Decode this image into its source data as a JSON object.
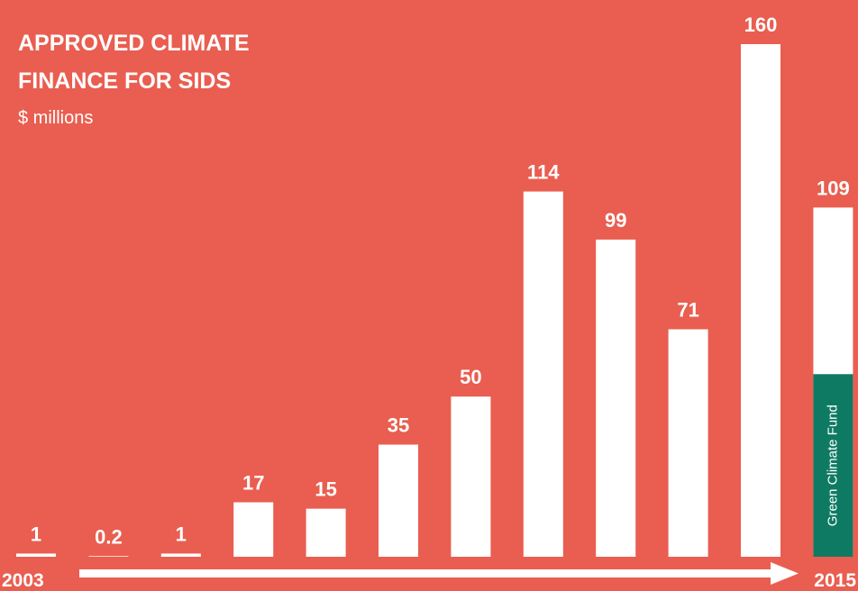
{
  "chart_data": {
    "type": "bar",
    "title": [
      "APPROVED CLIMATE",
      "FINANCE FOR SIDS"
    ],
    "subtitle": "$ millions",
    "categories": [
      "2003",
      null,
      null,
      null,
      null,
      null,
      null,
      null,
      null,
      null,
      null,
      "2015"
    ],
    "values": [
      1,
      0.2,
      1,
      17,
      15,
      35,
      50,
      114,
      99,
      71,
      160,
      109
    ],
    "color": "#ffffff",
    "background": "#e95e50",
    "segment": {
      "name": "Green Climate Fund",
      "index": 11,
      "value": 57,
      "color": "#0f7a63"
    }
  }
}
